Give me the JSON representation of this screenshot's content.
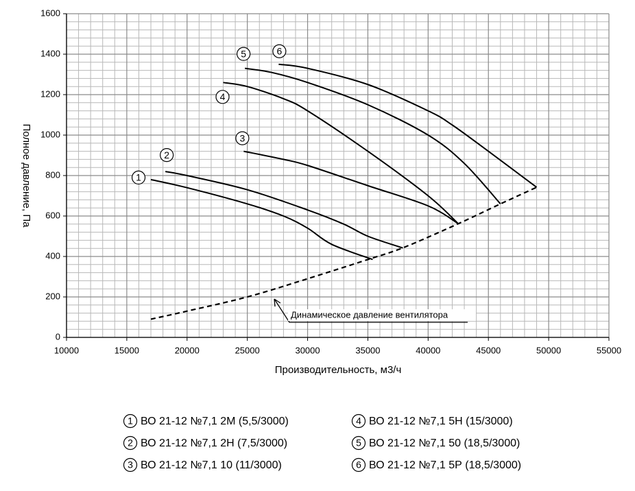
{
  "chart_data": {
    "type": "line",
    "xlabel": "Производительность, м3/ч",
    "ylabel": "Полное давление, Па",
    "xlim": [
      10000,
      55000
    ],
    "ylim": [
      0,
      1600
    ],
    "xticks": [
      10000,
      15000,
      20000,
      25000,
      30000,
      35000,
      40000,
      45000,
      50000,
      55000
    ],
    "yticks": [
      0,
      200,
      400,
      600,
      800,
      1000,
      1200,
      1400,
      1600
    ],
    "grid": true,
    "series": [
      {
        "label": "1",
        "name": "ВО 21-12 №7,1 2М (5,5/3000)",
        "color": "#000000",
        "x": [
          17000,
          20000,
          25000,
          28000,
          30000,
          32000,
          35400
        ],
        "values": [
          780,
          740,
          660,
          600,
          540,
          460,
          385
        ]
      },
      {
        "label": "2",
        "name": "ВО 21-12 №7,1 2Н (7,5/3000)",
        "color": "#000000",
        "x": [
          18200,
          20000,
          25000,
          30000,
          33000,
          35000,
          37900
        ],
        "values": [
          820,
          800,
          730,
          630,
          560,
          500,
          442
        ]
      },
      {
        "label": "3",
        "name": "ВО 21-12 №7,1 10 (11/3000)",
        "color": "#000000",
        "x": [
          24700,
          28000,
          30000,
          35000,
          40000,
          42500
        ],
        "values": [
          920,
          880,
          850,
          750,
          650,
          562
        ]
      },
      {
        "label": "4",
        "name": "ВО 21-12 №7,1 5Н (15/3000)",
        "color": "#000000",
        "x": [
          23000,
          25000,
          28000,
          30000,
          35000,
          40000,
          42500
        ],
        "values": [
          1260,
          1240,
          1180,
          1120,
          920,
          700,
          562
        ]
      },
      {
        "label": "5",
        "name": "ВО 21-12 №7,1 50 (18,5/3000)",
        "color": "#000000",
        "x": [
          24800,
          27000,
          30000,
          35000,
          40000,
          43000,
          46000
        ],
        "values": [
          1330,
          1310,
          1260,
          1150,
          1000,
          860,
          660
        ]
      },
      {
        "label": "6",
        "name": "ВО 21-12 №7,1 5Р (18,5/3000)",
        "color": "#000000",
        "x": [
          27600,
          30000,
          35000,
          40000,
          42000,
          45000,
          49000
        ],
        "values": [
          1350,
          1330,
          1250,
          1120,
          1050,
          920,
          742
        ]
      }
    ],
    "dynamic_pressure": {
      "label": "Динамическое давление вентилятора",
      "color": "#000000",
      "x": [
        17000,
        20000,
        25000,
        30000,
        35000,
        38000,
        42500,
        46000,
        49000
      ],
      "values": [
        90,
        130,
        200,
        290,
        385,
        445,
        562,
        660,
        742
      ]
    }
  }
}
